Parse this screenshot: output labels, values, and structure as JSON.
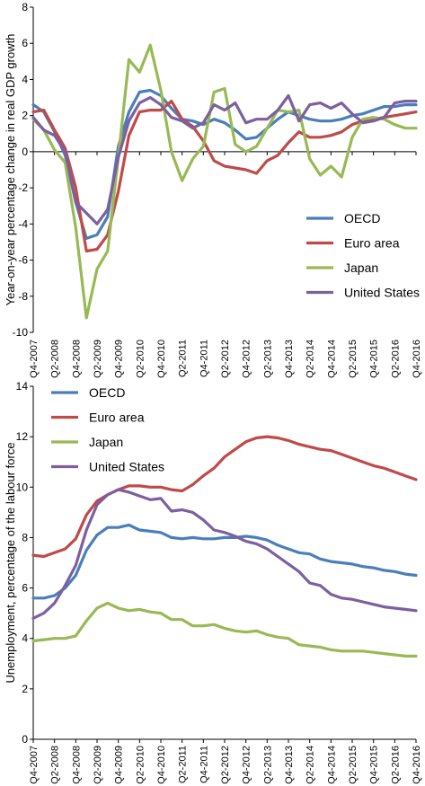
{
  "chart_data": [
    {
      "type": "line",
      "title": "",
      "xlabel": "",
      "ylabel": "Year-on-year percentage change in real GDP growth",
      "ylim": [
        -10,
        8
      ],
      "yticks": [
        -10,
        -8,
        -6,
        -4,
        -2,
        0,
        2,
        4,
        6,
        8
      ],
      "x": [
        "Q4-2007",
        "Q1-2008",
        "Q2-2008",
        "Q3-2008",
        "Q4-2008",
        "Q1-2009",
        "Q2-2009",
        "Q3-2009",
        "Q4-2009",
        "Q1-2010",
        "Q2-2010",
        "Q3-2010",
        "Q4-2010",
        "Q1-2011",
        "Q2-2011",
        "Q3-2011",
        "Q4-2011",
        "Q1-2012",
        "Q2-2012",
        "Q3-2012",
        "Q4-2012",
        "Q1-2013",
        "Q2-2013",
        "Q3-2013",
        "Q4-2013",
        "Q1-2014",
        "Q2-2014",
        "Q3-2014",
        "Q4-2014",
        "Q1-2015",
        "Q2-2015",
        "Q3-2015",
        "Q4-2015",
        "Q1-2016",
        "Q2-2016",
        "Q3-2016",
        "Q4-2016"
      ],
      "tick_labels": [
        "Q4-2007",
        "Q2-2008",
        "Q4-2008",
        "Q2-2009",
        "Q4-2009",
        "Q2-2010",
        "Q4-2010",
        "Q2-2011",
        "Q4-2011",
        "Q2-2012",
        "Q4-2012",
        "Q2-2013",
        "Q4-2013",
        "Q2-2014",
        "Q4-2014",
        "Q2-2015",
        "Q4-2015",
        "Q2-2016",
        "Q4-2016"
      ],
      "legend_position": "lower-right",
      "grid": false,
      "series": [
        {
          "name": "OECD",
          "color": "#4a7ebb",
          "values": [
            2.6,
            2.2,
            1.1,
            -0.2,
            -2.8,
            -4.8,
            -4.6,
            -3.6,
            0.3,
            2.2,
            3.3,
            3.4,
            3.1,
            2.4,
            1.8,
            1.7,
            1.5,
            1.8,
            1.6,
            1.2,
            0.7,
            0.8,
            1.3,
            1.8,
            2.2,
            2.0,
            1.8,
            1.7,
            1.7,
            1.8,
            2.0,
            2.1,
            2.3,
            2.5,
            2.5,
            2.6,
            2.6
          ]
        },
        {
          "name": "Euro area",
          "color": "#be4b48",
          "values": [
            2.2,
            2.3,
            1.2,
            0.2,
            -2.0,
            -5.5,
            -5.4,
            -4.6,
            -2.2,
            0.9,
            2.2,
            2.3,
            2.3,
            2.8,
            1.8,
            1.4,
            0.6,
            -0.5,
            -0.8,
            -0.9,
            -1.0,
            -1.2,
            -0.5,
            -0.2,
            0.5,
            1.1,
            0.8,
            0.8,
            0.9,
            1.1,
            1.5,
            1.7,
            1.8,
            1.9,
            2.0,
            2.1,
            2.2
          ]
        },
        {
          "name": "Japan",
          "color": "#98b954",
          "values": [
            1.8,
            1.2,
            0.1,
            -0.6,
            -4.2,
            -9.2,
            -6.5,
            -5.5,
            -0.3,
            5.1,
            4.4,
            5.9,
            3.4,
            0.0,
            -1.6,
            -0.4,
            0.3,
            3.3,
            3.5,
            0.4,
            0.0,
            0.3,
            1.3,
            2.3,
            2.2,
            2.3,
            -0.4,
            -1.3,
            -0.8,
            -1.4,
            0.8,
            1.8,
            1.9,
            1.8,
            1.5,
            1.3,
            1.3
          ]
        },
        {
          "name": "United States",
          "color": "#7d5fa0",
          "values": [
            1.9,
            1.2,
            0.9,
            0.0,
            -2.8,
            -3.4,
            -4.0,
            -3.2,
            -0.3,
            1.7,
            2.7,
            3.0,
            2.6,
            1.9,
            1.7,
            1.3,
            1.6,
            2.6,
            2.3,
            2.7,
            1.6,
            1.8,
            1.8,
            2.3,
            3.1,
            1.7,
            2.6,
            2.7,
            2.4,
            2.7,
            2.1,
            1.6,
            1.7,
            1.9,
            2.7,
            2.8,
            2.8
          ]
        }
      ]
    },
    {
      "type": "line",
      "title": "",
      "xlabel": "",
      "ylabel": "Unemployment, percentage of the labour force",
      "ylim": [
        0,
        14
      ],
      "yticks": [
        0,
        2,
        4,
        6,
        8,
        10,
        12,
        14
      ],
      "x": [
        "Q4-2007",
        "Q1-2008",
        "Q2-2008",
        "Q3-2008",
        "Q4-2008",
        "Q1-2009",
        "Q2-2009",
        "Q3-2009",
        "Q4-2009",
        "Q1-2010",
        "Q2-2010",
        "Q3-2010",
        "Q4-2010",
        "Q1-2011",
        "Q2-2011",
        "Q3-2011",
        "Q4-2011",
        "Q1-2012",
        "Q2-2012",
        "Q3-2012",
        "Q4-2012",
        "Q1-2013",
        "Q2-2013",
        "Q3-2013",
        "Q4-2013",
        "Q1-2014",
        "Q2-2014",
        "Q3-2014",
        "Q4-2014",
        "Q1-2015",
        "Q2-2015",
        "Q3-2015",
        "Q4-2015",
        "Q1-2016",
        "Q2-2016",
        "Q3-2016",
        "Q4-2016"
      ],
      "tick_labels": [
        "Q4-2007",
        "Q2-2008",
        "Q4-2008",
        "Q2-2009",
        "Q4-2009",
        "Q2-2010",
        "Q4-2010",
        "Q2-2011",
        "Q4-2011",
        "Q2-2012",
        "Q4-2012",
        "Q2-2013",
        "Q4-2013",
        "Q2-2014",
        "Q4-2014",
        "Q2-2015",
        "Q4-2015",
        "Q2-2016",
        "Q4-2016"
      ],
      "legend_position": "top-left",
      "grid": false,
      "series": [
        {
          "name": "OECD",
          "color": "#4a7ebb",
          "values": [
            5.6,
            5.6,
            5.7,
            6.0,
            6.5,
            7.5,
            8.1,
            8.4,
            8.4,
            8.5,
            8.3,
            8.25,
            8.2,
            8.0,
            7.95,
            8.0,
            7.95,
            7.95,
            8.0,
            8.0,
            8.05,
            8.0,
            7.9,
            7.7,
            7.55,
            7.4,
            7.35,
            7.15,
            7.05,
            7.0,
            6.95,
            6.85,
            6.8,
            6.7,
            6.65,
            6.55,
            6.5
          ]
        },
        {
          "name": "Euro area",
          "color": "#be4b48",
          "values": [
            7.3,
            7.25,
            7.4,
            7.55,
            7.95,
            8.9,
            9.45,
            9.7,
            9.9,
            10.05,
            10.05,
            10.0,
            10.0,
            9.9,
            9.85,
            10.1,
            10.45,
            10.75,
            11.2,
            11.5,
            11.8,
            11.95,
            12.0,
            11.95,
            11.85,
            11.7,
            11.6,
            11.5,
            11.45,
            11.3,
            11.15,
            11.0,
            10.85,
            10.75,
            10.6,
            10.45,
            10.3
          ]
        },
        {
          "name": "Japan",
          "color": "#98b954",
          "values": [
            3.9,
            3.95,
            4.0,
            4.0,
            4.1,
            4.7,
            5.2,
            5.4,
            5.2,
            5.1,
            5.15,
            5.05,
            5.0,
            4.75,
            4.75,
            4.5,
            4.5,
            4.55,
            4.4,
            4.3,
            4.25,
            4.3,
            4.15,
            4.05,
            4.0,
            3.75,
            3.7,
            3.65,
            3.55,
            3.5,
            3.5,
            3.5,
            3.45,
            3.4,
            3.35,
            3.3,
            3.3
          ]
        },
        {
          "name": "United States",
          "color": "#7d5fa0",
          "values": [
            4.8,
            5.0,
            5.4,
            6.1,
            6.9,
            8.3,
            9.3,
            9.7,
            9.9,
            9.8,
            9.65,
            9.5,
            9.55,
            9.05,
            9.1,
            9.0,
            8.7,
            8.3,
            8.2,
            8.05,
            7.85,
            7.75,
            7.55,
            7.25,
            6.95,
            6.65,
            6.2,
            6.1,
            5.75,
            5.6,
            5.55,
            5.45,
            5.35,
            5.25,
            5.2,
            5.15,
            5.1
          ]
        }
      ]
    }
  ]
}
